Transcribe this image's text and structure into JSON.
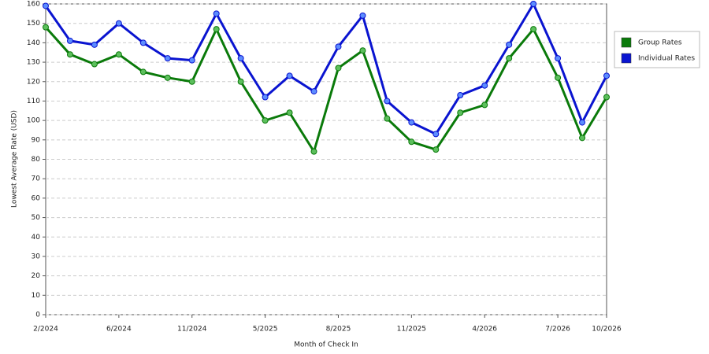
{
  "chart_data": {
    "type": "line",
    "y_label": "Lowest Average Rate (USD)",
    "x_label": "Month of Check In",
    "categories": [
      "2/2024",
      null,
      null,
      "6/2024",
      null,
      null,
      "11/2024",
      null,
      null,
      "5/2025",
      null,
      null,
      "8/2025",
      null,
      null,
      "11/2025",
      null,
      null,
      "4/2026",
      null,
      null,
      "7/2026",
      null,
      "10/2026"
    ],
    "series": [
      {
        "name": "Group Rates",
        "color": "#0a7a0a",
        "values": [
          148,
          134,
          129,
          134,
          125,
          122,
          120,
          147,
          120,
          100,
          104,
          84,
          127,
          136,
          101,
          89,
          85,
          104,
          108,
          132,
          147,
          122,
          91,
          112
        ]
      },
      {
        "name": "Individual Rates",
        "color": "#0a14d0",
        "values": [
          159,
          141,
          139,
          150,
          140,
          132,
          131,
          155,
          132,
          112,
          123,
          115,
          138,
          154,
          110,
          99,
          93,
          113,
          118,
          139,
          160,
          132,
          99,
          123
        ]
      }
    ],
    "ylim": [
      0,
      160
    ],
    "yticks": [
      0,
      10,
      20,
      30,
      40,
      50,
      60,
      70,
      80,
      90,
      100,
      110,
      120,
      130,
      140,
      150,
      160
    ],
    "grid": true,
    "legend": "right"
  }
}
